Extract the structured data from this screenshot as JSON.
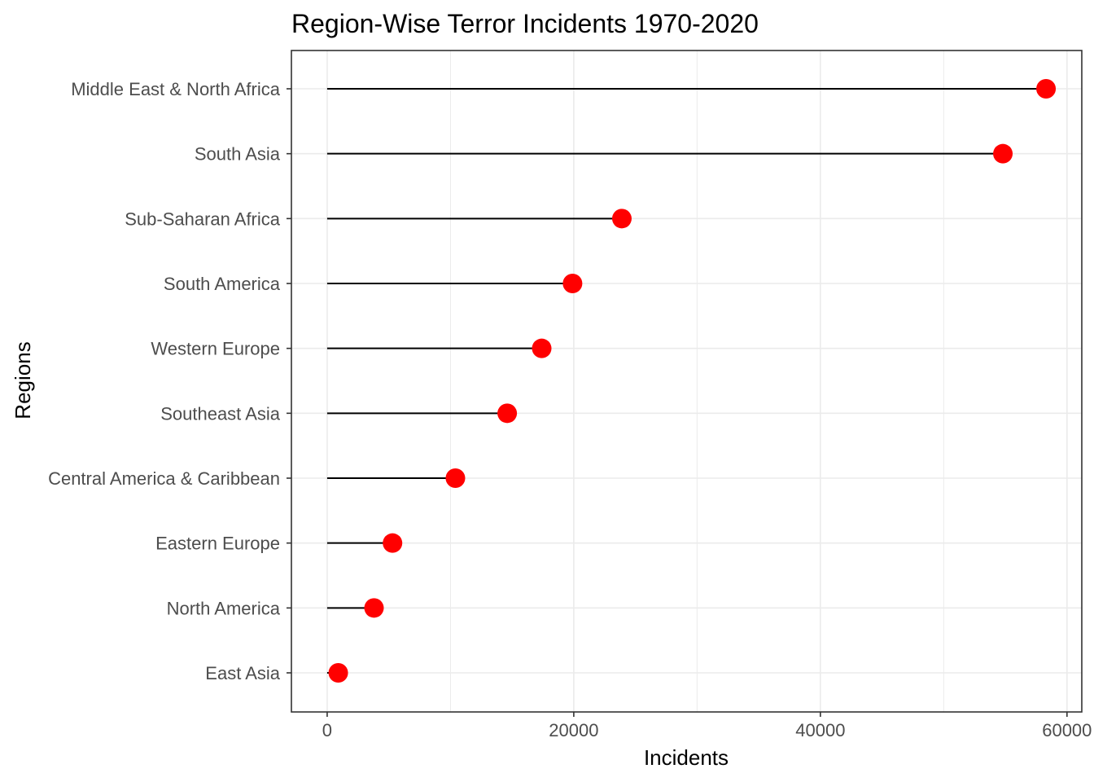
{
  "chart_data": {
    "type": "lollipop",
    "title": "Region-Wise Terror Incidents 1970-2020",
    "xlabel": "Incidents",
    "ylabel": "Regions",
    "xlim": [
      -2900,
      61200
    ],
    "x_ticks": [
      0,
      20000,
      40000,
      60000
    ],
    "x_tick_labels": [
      "0",
      "20000",
      "40000",
      "60000"
    ],
    "categories": [
      "Middle East & North Africa",
      "South Asia",
      "Sub-Saharan Africa",
      "South America",
      "Western Europe",
      "Southeast Asia",
      "Central America & Caribbean",
      "Eastern Europe",
      "North America",
      "East Asia"
    ],
    "values": [
      58300,
      54800,
      23900,
      19900,
      17400,
      14600,
      10400,
      5300,
      3800,
      900
    ],
    "grid": true,
    "legend": "none",
    "colors": {
      "point": "#ff0000",
      "stem": "#000000",
      "grid": "#ebebeb",
      "panel_border": "#333333",
      "tick_text": "#4d4d4d"
    }
  }
}
